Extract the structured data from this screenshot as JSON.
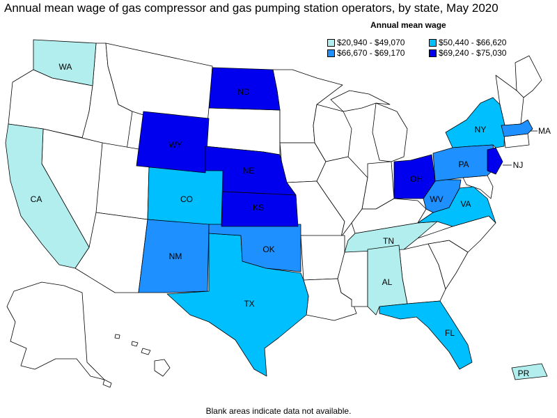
{
  "title": "Annual mean wage of gas compressor and gas pumping station operators, by state, May 2020",
  "legend": {
    "title": "Annual mean wage",
    "items": [
      {
        "range": "$20,940 - $49,070",
        "color": "#b2eeee"
      },
      {
        "range": "$66,670 - $69,170",
        "color": "#1e90ff"
      },
      {
        "range": "$50,440 - $66,620",
        "color": "#00bfff"
      },
      {
        "range": "$69,240 - $75,030",
        "color": "#0000ee"
      }
    ]
  },
  "footnote": "Blank areas indicate data not available.",
  "colors": {
    "blank": "#ffffff",
    "tier1": "#b2eeee",
    "tier2": "#00bfff",
    "tier3": "#1e90ff",
    "tier4": "#0000ee"
  },
  "state_labels": {
    "WA": "WA",
    "CA": "CA",
    "ND": "ND",
    "WY": "WY",
    "NE": "NE",
    "CO": "CO",
    "KS": "KS",
    "NM": "NM",
    "OK": "OK",
    "TX": "TX",
    "TN": "TN",
    "AL": "AL",
    "FL": "FL",
    "OH": "OH",
    "WV": "WV",
    "VA": "VA",
    "PA": "PA",
    "NY": "NY",
    "MA": "MA",
    "NJ": "NJ",
    "PR": "PR"
  },
  "state_tiers": {
    "WA": 1,
    "CA": 1,
    "TN": 1,
    "AL": 1,
    "PR": 1,
    "CO": 2,
    "TX": 2,
    "FL": 2,
    "NY": 2,
    "VA": 2,
    "NM": 3,
    "OK": 3,
    "PA": 3,
    "WV": 3,
    "MA": 3,
    "ND": 4,
    "WY": 4,
    "NE": 4,
    "KS": 4,
    "OH": 4,
    "NJ": 4
  }
}
